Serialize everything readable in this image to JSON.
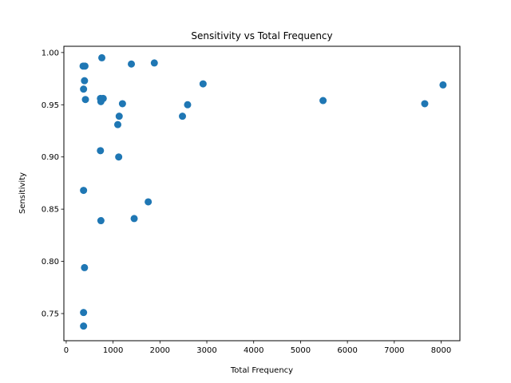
{
  "chart_data": {
    "type": "scatter",
    "title": "Sensitivity vs Total Frequency",
    "xlabel": "Total Frequency",
    "ylabel": "Sensitivity",
    "xlim": [
      -50,
      8400
    ],
    "ylim": [
      0.724,
      1.006
    ],
    "x_ticks": [
      0,
      1000,
      2000,
      3000,
      4000,
      5000,
      6000,
      7000,
      8000
    ],
    "x_tick_labels": [
      "0",
      "1000",
      "2000",
      "3000",
      "4000",
      "5000",
      "6000",
      "7000",
      "8000"
    ],
    "y_ticks": [
      0.75,
      0.8,
      0.85,
      0.9,
      0.95,
      1.0
    ],
    "y_tick_labels": [
      "0.75",
      "0.80",
      "0.85",
      "0.90",
      "0.95",
      "1.00"
    ],
    "grid": false,
    "marker_color": "#1f77b4",
    "points": [
      {
        "x": 360,
        "y": 0.987
      },
      {
        "x": 400,
        "y": 0.987
      },
      {
        "x": 760,
        "y": 0.995
      },
      {
        "x": 1390,
        "y": 0.989
      },
      {
        "x": 1880,
        "y": 0.99
      },
      {
        "x": 390,
        "y": 0.973
      },
      {
        "x": 370,
        "y": 0.965
      },
      {
        "x": 410,
        "y": 0.955
      },
      {
        "x": 730,
        "y": 0.956
      },
      {
        "x": 790,
        "y": 0.956
      },
      {
        "x": 740,
        "y": 0.953
      },
      {
        "x": 1200,
        "y": 0.951
      },
      {
        "x": 1130,
        "y": 0.939
      },
      {
        "x": 1100,
        "y": 0.931
      },
      {
        "x": 2480,
        "y": 0.939
      },
      {
        "x": 2590,
        "y": 0.95
      },
      {
        "x": 2920,
        "y": 0.97
      },
      {
        "x": 5480,
        "y": 0.954
      },
      {
        "x": 7650,
        "y": 0.951
      },
      {
        "x": 8040,
        "y": 0.969
      },
      {
        "x": 730,
        "y": 0.906
      },
      {
        "x": 1120,
        "y": 0.9
      },
      {
        "x": 370,
        "y": 0.868
      },
      {
        "x": 1750,
        "y": 0.857
      },
      {
        "x": 1450,
        "y": 0.841
      },
      {
        "x": 740,
        "y": 0.839
      },
      {
        "x": 390,
        "y": 0.794
      },
      {
        "x": 370,
        "y": 0.751
      },
      {
        "x": 370,
        "y": 0.738
      }
    ]
  }
}
